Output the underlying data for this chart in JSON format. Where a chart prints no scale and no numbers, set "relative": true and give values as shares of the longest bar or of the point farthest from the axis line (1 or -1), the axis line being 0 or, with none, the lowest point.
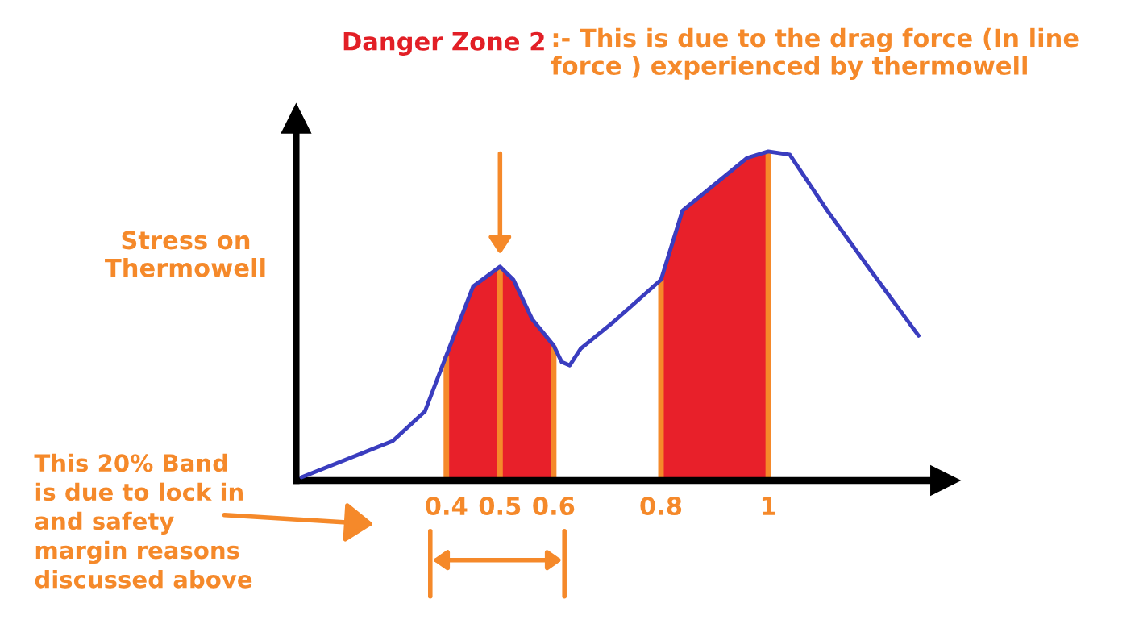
{
  "chart_data": {
    "type": "line",
    "title": "Danger Zone 2",
    "subtitle": ":- This is due to the drag force (In line force ) experienced by thermowell",
    "ylabel": "Stress on\nThermowell",
    "relative": true,
    "xlim": [
      0.12,
      1.33
    ],
    "xticks": [
      0.4,
      0.5,
      0.6,
      0.8,
      1
    ],
    "series": [
      {
        "color": "#3a3dbf",
        "x": [
          0.13,
          0.3,
          0.36,
          0.4,
          0.45,
          0.5,
          0.525,
          0.56,
          0.6,
          0.615,
          0.63,
          0.65,
          0.71,
          0.8,
          0.84,
          0.96,
          1.0,
          1.04,
          1.11,
          1.19,
          1.28
        ],
        "values": [
          0.01,
          0.12,
          0.21,
          0.38,
          0.59,
          0.65,
          0.61,
          0.49,
          0.41,
          0.36,
          0.35,
          0.4,
          0.48,
          0.61,
          0.82,
          0.98,
          1.0,
          0.99,
          0.82,
          0.64,
          0.44
        ]
      },
      {
        "type": "area",
        "color": "#e8202a",
        "x": [
          0.4,
          0.45,
          0.5,
          0.525,
          0.56,
          0.6
        ],
        "values": [
          0.38,
          0.59,
          0.65,
          0.61,
          0.49,
          0.41
        ]
      },
      {
        "type": "area",
        "color": "#e8202a",
        "x": [
          0.8,
          0.84,
          0.96,
          1.0
        ],
        "values": [
          0.61,
          0.82,
          0.98,
          1.0
        ]
      }
    ],
    "ref_lines": [
      {
        "axis": "x",
        "value": 0.4,
        "color": "#f5892a"
      },
      {
        "axis": "x",
        "value": 0.5,
        "color": "#f5892a"
      },
      {
        "axis": "x",
        "value": 0.6,
        "color": "#f5892a"
      },
      {
        "axis": "x",
        "value": 0.8,
        "color": "#f5892a"
      },
      {
        "axis": "x",
        "value": 1,
        "color": "#f5892a"
      }
    ],
    "annotations": [
      "This 20% Band\nis due to lock in\nand safety\nmargin reasons\ndiscussed above"
    ],
    "grid": false
  }
}
